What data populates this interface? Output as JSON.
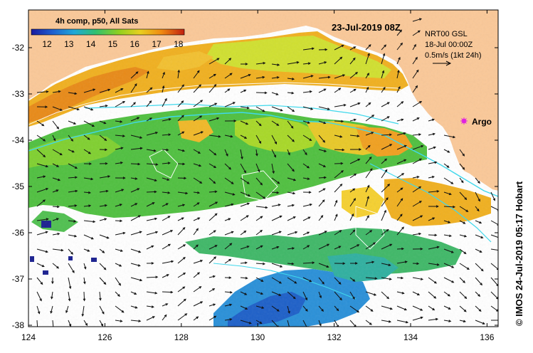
{
  "map": {
    "title": "23-Jul-2019 08Z",
    "product_label": "4h comp, p50, All Sats",
    "colorbar": {
      "ticks": [
        "12",
        "13",
        "14",
        "15",
        "16",
        "17",
        "18"
      ],
      "colors": [
        "#1a1aa0",
        "#1e5fd0",
        "#20a8d8",
        "#30c070",
        "#8fd020",
        "#e8d020",
        "#f08a10",
        "#c02010"
      ]
    },
    "info": {
      "line1": "NRT00 GSL",
      "line2": "18-Jul 00:00Z",
      "line3": "0.5m/s (1kt 24h)"
    },
    "argo_label": "Argo",
    "credit": "© IMOS 24-Jul-2019 05:17 Hobart",
    "x_ticks": [
      "124",
      "126",
      "128",
      "130",
      "132",
      "134",
      "136"
    ],
    "y_ticks": [
      "-32",
      "-33",
      "-34",
      "-35",
      "-36",
      "-37",
      "-38"
    ],
    "colors": {
      "land": "#fac898",
      "ocean": "#ffffff",
      "track": "#40d8ec",
      "argo": "#e020e0"
    }
  }
}
